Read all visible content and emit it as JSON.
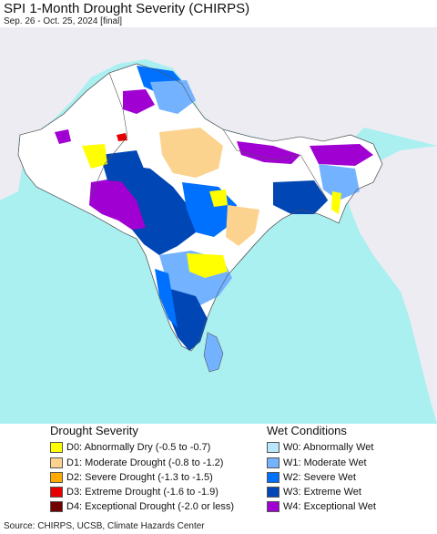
{
  "title": "SPI 1-Month Drought Severity (CHIRPS)",
  "subtitle": "Sep. 26 - Oct. 25, 2024 [final]",
  "source": "Source: CHIRPS, UCSB, Climate Hazards Center",
  "map": {
    "colors": {
      "ocean": "#aaf0f0",
      "outside_land": "#ececf2",
      "land_base": "#ffffff",
      "borders": "#555555"
    }
  },
  "legend": {
    "drought_title": "Drought Severity",
    "wet_title": "Wet Conditions",
    "drought": [
      {
        "code": "D0",
        "label": "D0: Abnormally Dry (-0.5 to -0.7)",
        "color": "#ffff00"
      },
      {
        "code": "D1",
        "label": "D1: Moderate Drought (-0.8 to -1.2)",
        "color": "#fcd38e"
      },
      {
        "code": "D2",
        "label": "D2: Severe Drought (-1.3 to -1.5)",
        "color": "#ffaa00"
      },
      {
        "code": "D3",
        "label": "D3: Extreme Drought (-1.6 to -1.9)",
        "color": "#e60000"
      },
      {
        "code": "D4",
        "label": "D4: Exceptional Drought (-2.0 or less)",
        "color": "#730000"
      }
    ],
    "wet": [
      {
        "code": "W0",
        "label": "W0: Abnormally Wet",
        "color": "#b9e6fa"
      },
      {
        "code": "W1",
        "label": "W1: Moderate Wet",
        "color": "#73b2ff"
      },
      {
        "code": "W2",
        "label": "W2: Severe Wet",
        "color": "#0070ff"
      },
      {
        "code": "W3",
        "label": "W3: Extreme Wet",
        "color": "#0046b4"
      },
      {
        "code": "W4",
        "label": "W4: Exceptional Wet",
        "color": "#a000d2"
      }
    ]
  }
}
